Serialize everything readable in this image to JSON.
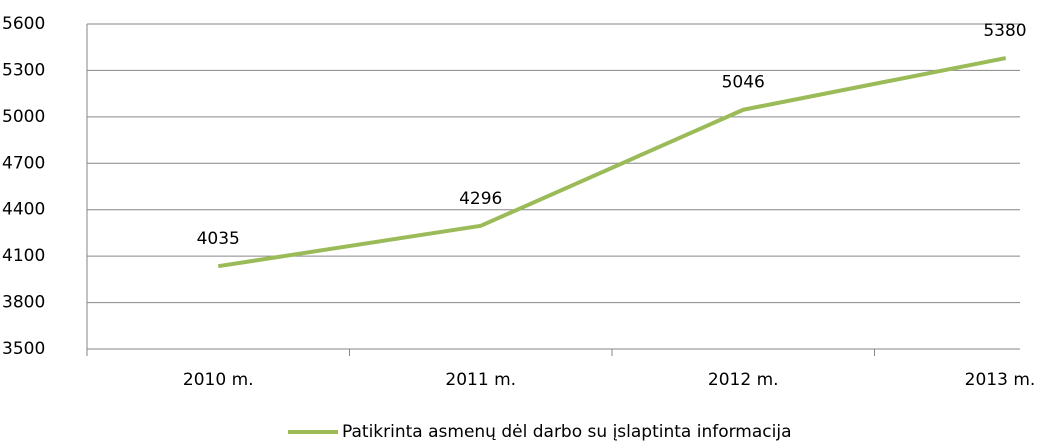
{
  "chart_data": {
    "type": "line",
    "categories": [
      "2010 m.",
      "2011 m.",
      "2012 m.",
      "2013 m."
    ],
    "series": [
      {
        "name": "Patikrinta asmenų dėl darbo su įslaptinta informacija",
        "color": "#9bbb59",
        "values": [
          4035,
          4296,
          5046,
          5380
        ]
      }
    ],
    "ylim": [
      3500,
      5600
    ],
    "yticks": [
      3500,
      3800,
      4100,
      4400,
      4700,
      5000,
      5300,
      5600
    ],
    "grid": true
  }
}
